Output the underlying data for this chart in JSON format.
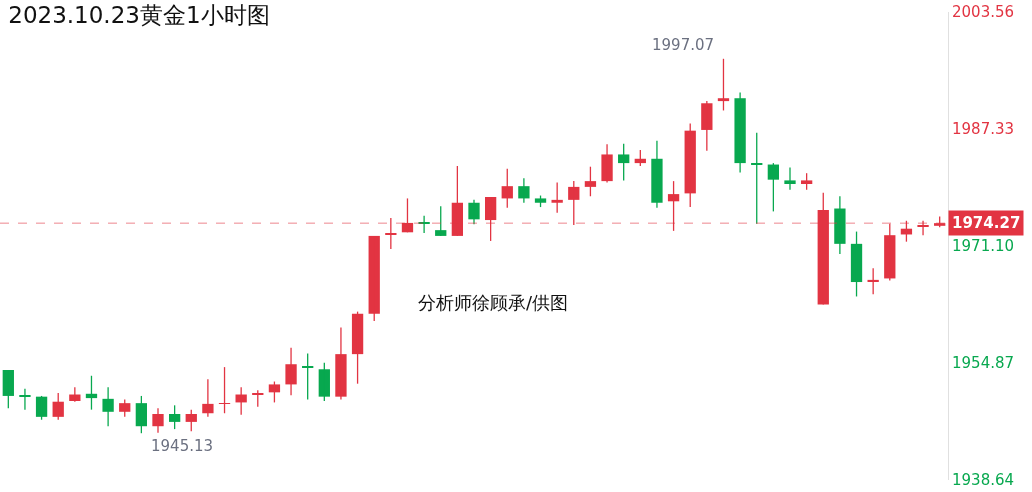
{
  "chart_data": {
    "type": "candlestick",
    "title": "2023.10.23黄金1小时图",
    "categories": [
      null,
      null,
      null,
      null,
      null,
      null,
      null,
      null,
      null,
      null,
      null,
      null,
      null,
      null,
      null,
      null,
      null,
      null,
      null,
      null,
      null,
      null,
      null,
      null,
      null,
      null,
      null,
      null,
      null,
      null,
      null,
      null,
      null,
      null,
      null,
      null,
      null,
      null,
      null,
      null,
      null,
      null,
      null,
      null,
      null,
      null,
      null,
      null,
      null,
      null,
      null,
      null,
      null,
      null,
      null,
      null,
      null
    ],
    "ohlc": [
      [
        1953.9,
        1953.9,
        1948.6,
        1950.3
      ],
      [
        1950.3,
        1951.3,
        1948.4,
        1950.2
      ],
      [
        1950.2,
        1950.3,
        1947.0,
        1947.4
      ],
      [
        1947.4,
        1950.7,
        1947.0,
        1949.5
      ],
      [
        1949.6,
        1951.5,
        1949.5,
        1950.5
      ],
      [
        1950.6,
        1953.1,
        1948.4,
        1950.0
      ],
      [
        1949.9,
        1951.5,
        1946.1,
        1948.1
      ],
      [
        1948.1,
        1949.8,
        1947.4,
        1949.3
      ],
      [
        1949.3,
        1950.3,
        1945.13,
        1946.1
      ],
      [
        1946.1,
        1948.6,
        1945.2,
        1947.8
      ],
      [
        1947.8,
        1949.0,
        1945.7,
        1946.7
      ],
      [
        1946.7,
        1948.4,
        1945.4,
        1947.8
      ],
      [
        1947.9,
        1952.6,
        1947.4,
        1949.2
      ],
      [
        1949.2,
        1954.3,
        1947.9,
        1949.3
      ],
      [
        1949.4,
        1951.5,
        1947.7,
        1950.5
      ],
      [
        1950.5,
        1951.1,
        1948.8,
        1950.6
      ],
      [
        1950.8,
        1952.3,
        1949.4,
        1951.9
      ],
      [
        1951.9,
        1957.0,
        1950.4,
        1954.7
      ],
      [
        1954.4,
        1956.2,
        1949.8,
        1954.3
      ],
      [
        1954.0,
        1954.9,
        1949.6,
        1950.2
      ],
      [
        1950.2,
        1959.8,
        1949.8,
        1956.1
      ],
      [
        1956.1,
        1962.0,
        1952.0,
        1961.7
      ],
      [
        1961.7,
        1972.5,
        1960.7,
        1972.5
      ],
      [
        1972.7,
        1975.0,
        1970.7,
        1972.8
      ],
      [
        1973.0,
        1977.7,
        1973.0,
        1974.3
      ],
      [
        1974.3,
        1975.3,
        1972.9,
        1974.2
      ],
      [
        1973.3,
        1976.6,
        1972.5,
        1972.5
      ],
      [
        1972.5,
        1982.2,
        1972.5,
        1977.1
      ],
      [
        1977.1,
        1977.5,
        1974.1,
        1974.8
      ],
      [
        1974.7,
        1977.9,
        1971.8,
        1977.9
      ],
      [
        1977.7,
        1981.8,
        1976.4,
        1979.4
      ],
      [
        1979.4,
        1980.5,
        1977.1,
        1977.7
      ],
      [
        1977.7,
        1978.1,
        1976.5,
        1977.1
      ],
      [
        1977.1,
        1979.9,
        1975.7,
        1977.5
      ],
      [
        1977.5,
        1980.1,
        1974.0,
        1979.3
      ],
      [
        1979.3,
        1982.1,
        1978.0,
        1980.1
      ],
      [
        1980.1,
        1985.2,
        1979.9,
        1983.8
      ],
      [
        1983.8,
        1985.3,
        1980.2,
        1982.6
      ],
      [
        1982.6,
        1984.4,
        1982.2,
        1983.2
      ],
      [
        1983.2,
        1985.7,
        1976.4,
        1977.1
      ],
      [
        1977.3,
        1980.1,
        1973.2,
        1978.3
      ],
      [
        1978.4,
        1988.1,
        1976.5,
        1987.1
      ],
      [
        1987.2,
        1991.2,
        1984.3,
        1990.9
      ],
      [
        1991.2,
        1997.07,
        1989.9,
        1991.6
      ],
      [
        1991.6,
        1992.4,
        1981.3,
        1982.6
      ],
      [
        1982.6,
        1986.8,
        1974.2,
        1982.4
      ],
      [
        1982.4,
        1982.6,
        1975.9,
        1980.3
      ],
      [
        1980.2,
        1982.0,
        1978.9,
        1979.7
      ],
      [
        1979.7,
        1981.2,
        1978.9,
        1980.2
      ],
      [
        1963.0,
        1978.5,
        1963.0,
        1976.1
      ],
      [
        1976.3,
        1978.0,
        1970.0,
        1971.4
      ],
      [
        1971.4,
        1973.1,
        1964.1,
        1966.1
      ],
      [
        1966.2,
        1968.0,
        1964.4,
        1966.4
      ],
      [
        1966.6,
        1974.2,
        1966.3,
        1972.6
      ],
      [
        1972.7,
        1974.6,
        1971.7,
        1973.5
      ],
      [
        1973.8,
        1974.6,
        1972.6,
        1973.9
      ],
      [
        1973.9,
        1975.2,
        1973.7,
        1974.27
      ]
    ],
    "colors": [
      "#08a84f",
      "#08a84f",
      "#08a84f",
      "#e23442",
      "#e23442",
      "#08a84f",
      "#08a84f",
      "#e23442",
      "#08a84f",
      "#e23442",
      "#08a84f",
      "#e23442",
      "#e23442",
      "#e23442",
      "#e23442",
      "#e23442",
      "#e23442",
      "#e23442",
      "#08a84f",
      "#08a84f",
      "#e23442",
      "#e23442",
      "#e23442",
      "#e23442",
      "#e23442",
      "#08a84f",
      "#08a84f",
      "#e23442",
      "#08a84f",
      "#e23442",
      "#e23442",
      "#08a84f",
      "#08a84f",
      "#e23442",
      "#e23442",
      "#e23442",
      "#e23442",
      "#08a84f",
      "#e23442",
      "#08a84f",
      "#e23442",
      "#e23442",
      "#e23442",
      "#e23442",
      "#08a84f",
      "#08a84f",
      "#08a84f",
      "#08a84f",
      "#e23442",
      "#e23442",
      "#08a84f",
      "#08a84f",
      "#e23442",
      "#e23442",
      "#e23442",
      "#e23442",
      "#e23442"
    ],
    "ylim": [
      1938.64,
      2003.56
    ],
    "yticks": [
      1938.64,
      1954.87,
      {
        "value": 1971.1,
        "label": "1971.10"
      },
      1987.33,
      2003.56
    ],
    "ref_lines": [
      {
        "axis": "y",
        "value": 1974.27,
        "label": "1974.27",
        "color": "#e23442",
        "line_style": "dashed"
      }
    ],
    "annotations": [
      "1997.07",
      "1945.13",
      "分析师徐顾承/供图"
    ],
    "tick_labels": "y"
  }
}
